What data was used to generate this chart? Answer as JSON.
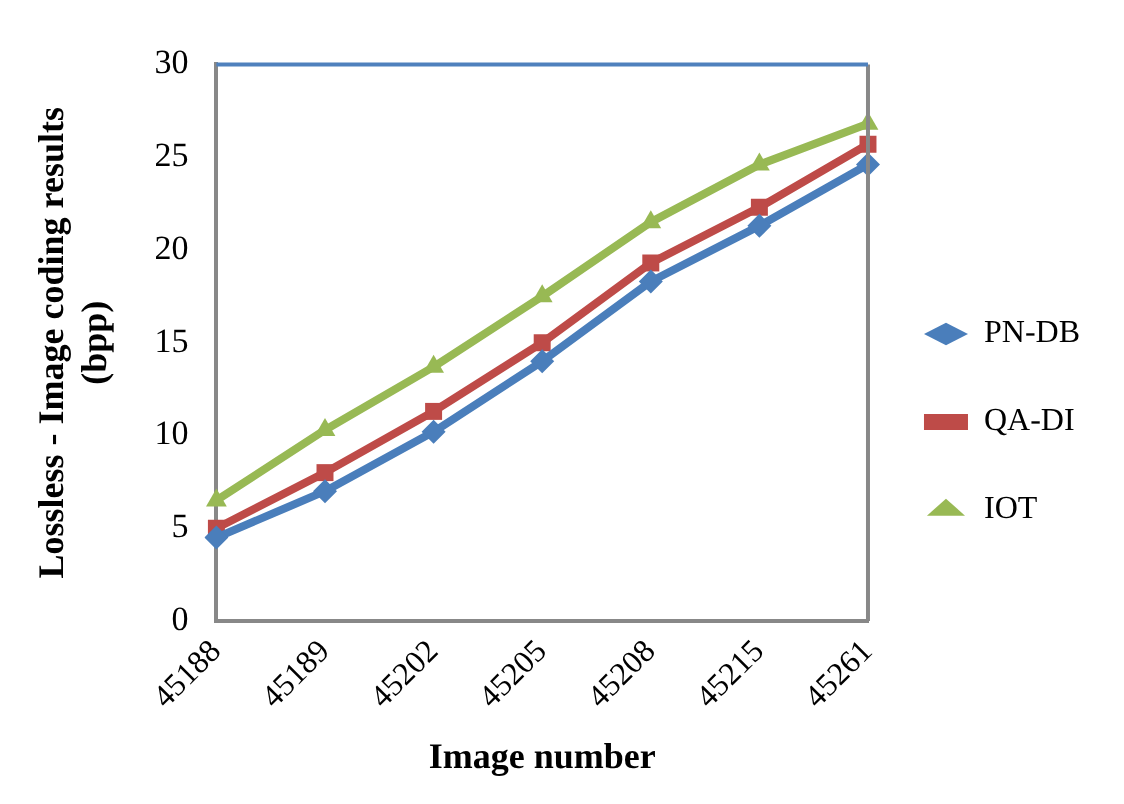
{
  "chart_data": {
    "type": "line",
    "xlabel": "Image number",
    "ylabel": "Lossless - Image coding results (bpp)",
    "categories": [
      "45188",
      "45189",
      "45202",
      "45205",
      "45208",
      "45215",
      "45261"
    ],
    "series": [
      {
        "name": "PN-DB",
        "color": "#4a7ebb",
        "marker": "diamond",
        "values": [
          4.5,
          7,
          10.2,
          14,
          18.3,
          21.3,
          24.6
        ]
      },
      {
        "name": "QA-DI",
        "color": "#be4b48",
        "marker": "square",
        "values": [
          5,
          8,
          11.3,
          15,
          19.3,
          22.3,
          25.7
        ]
      },
      {
        "name": "IOT",
        "color": "#98b954",
        "marker": "triangle",
        "values": [
          6.5,
          10.3,
          13.7,
          17.5,
          21.5,
          24.6,
          26.8
        ]
      }
    ],
    "ylim": [
      0,
      30
    ],
    "yticks": [
      0,
      5,
      10,
      15,
      20,
      25,
      30
    ],
    "grid": false,
    "legend": "right"
  }
}
